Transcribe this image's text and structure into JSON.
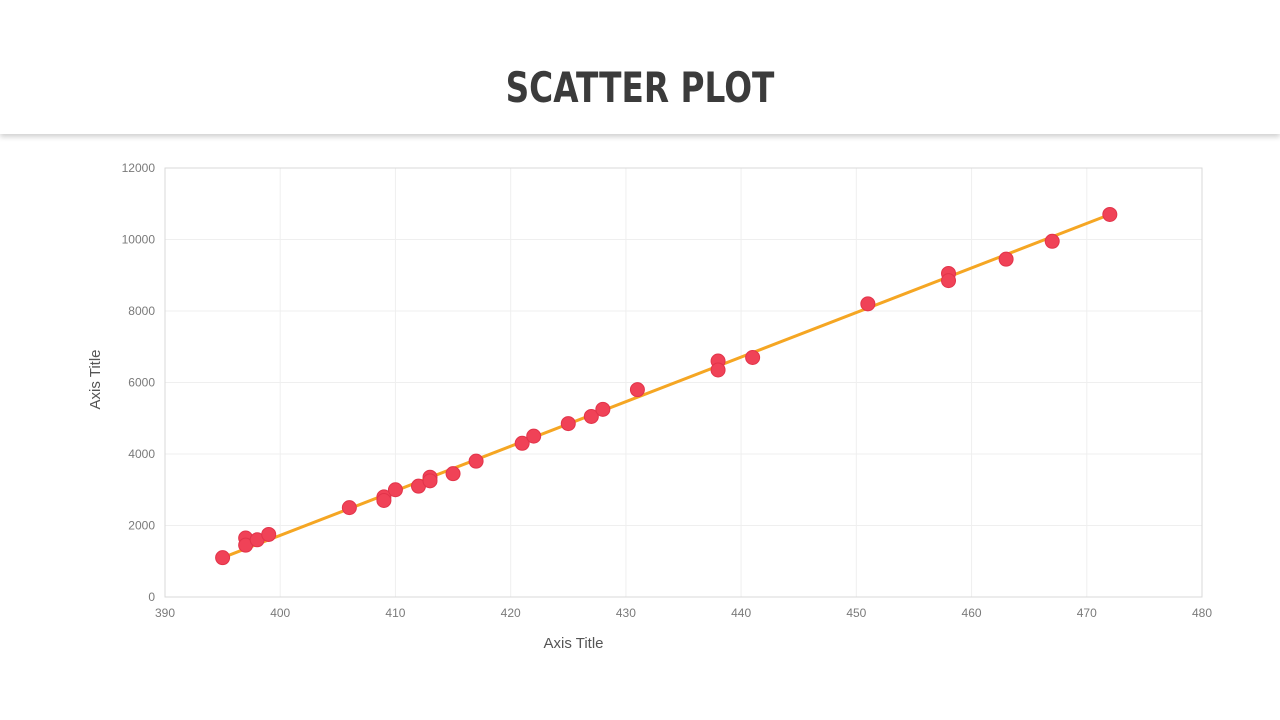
{
  "page": {
    "title": "SCATTER PLOT"
  },
  "chart_data": {
    "type": "scatter",
    "title": "SCATTER PLOT",
    "xlabel": "Axis Title",
    "ylabel": "Axis Title",
    "xlim": [
      390,
      480
    ],
    "ylim": [
      0,
      12000
    ],
    "x_ticks": [
      390,
      400,
      410,
      420,
      430,
      440,
      450,
      460,
      470,
      480
    ],
    "y_ticks": [
      0,
      2000,
      4000,
      6000,
      8000,
      10000,
      12000
    ],
    "grid": true,
    "legend": "none",
    "series": [
      {
        "marker_color": "#f04257",
        "points": [
          {
            "x": 395,
            "y": 1100
          },
          {
            "x": 397,
            "y": 1650
          },
          {
            "x": 397,
            "y": 1450
          },
          {
            "x": 398,
            "y": 1600
          },
          {
            "x": 399,
            "y": 1750
          },
          {
            "x": 406,
            "y": 2500
          },
          {
            "x": 409,
            "y": 2800
          },
          {
            "x": 409,
            "y": 2700
          },
          {
            "x": 410,
            "y": 3000
          },
          {
            "x": 412,
            "y": 3100
          },
          {
            "x": 413,
            "y": 3350
          },
          {
            "x": 413,
            "y": 3250
          },
          {
            "x": 415,
            "y": 3450
          },
          {
            "x": 417,
            "y": 3800
          },
          {
            "x": 421,
            "y": 4300
          },
          {
            "x": 422,
            "y": 4500
          },
          {
            "x": 425,
            "y": 4850
          },
          {
            "x": 427,
            "y": 5050
          },
          {
            "x": 428,
            "y": 5250
          },
          {
            "x": 431,
            "y": 5800
          },
          {
            "x": 438,
            "y": 6600
          },
          {
            "x": 438,
            "y": 6350
          },
          {
            "x": 441,
            "y": 6700
          },
          {
            "x": 451,
            "y": 8200
          },
          {
            "x": 458,
            "y": 9050
          },
          {
            "x": 458,
            "y": 8850
          },
          {
            "x": 463,
            "y": 9450
          },
          {
            "x": 467,
            "y": 9950
          },
          {
            "x": 472,
            "y": 10700
          }
        ]
      }
    ],
    "trendline": {
      "type": "linear",
      "color": "#f5a623",
      "start": {
        "x": 395,
        "y": 1100
      },
      "end": {
        "x": 472,
        "y": 10700
      }
    }
  }
}
